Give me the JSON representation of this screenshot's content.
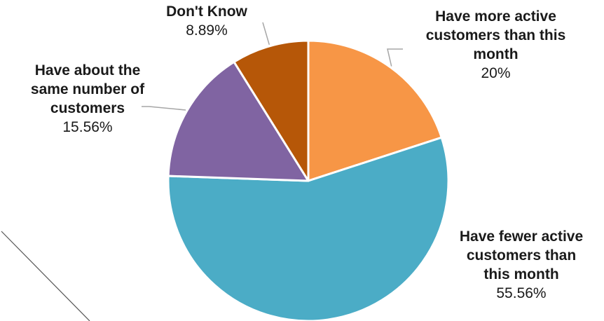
{
  "chart_data": {
    "type": "pie",
    "slices": [
      {
        "label": "Have more active customers than this month",
        "value": 20,
        "value_label": "20%",
        "color": "#F79646"
      },
      {
        "label": "Have fewer active customers than this month",
        "value": 55.56,
        "value_label": "55.56%",
        "color": "#4BACC6"
      },
      {
        "label": "Have about the same number of customers",
        "value": 15.56,
        "value_label": "15.56%",
        "color": "#8064A2"
      },
      {
        "label": "Don't Know",
        "value": 8.89,
        "value_label": "8.89%",
        "color": "#B65708"
      }
    ],
    "labels": {
      "more": [
        "Have more active",
        "customers than this",
        "month"
      ],
      "fewer": [
        "Have fewer active",
        "customers than",
        "this month"
      ],
      "same": [
        "Have about the",
        "same number of",
        "customers"
      ],
      "dontknow": [
        "Don't Know"
      ]
    },
    "start_angle": "12 o'clock",
    "direction": "clockwise",
    "legend": "none"
  }
}
